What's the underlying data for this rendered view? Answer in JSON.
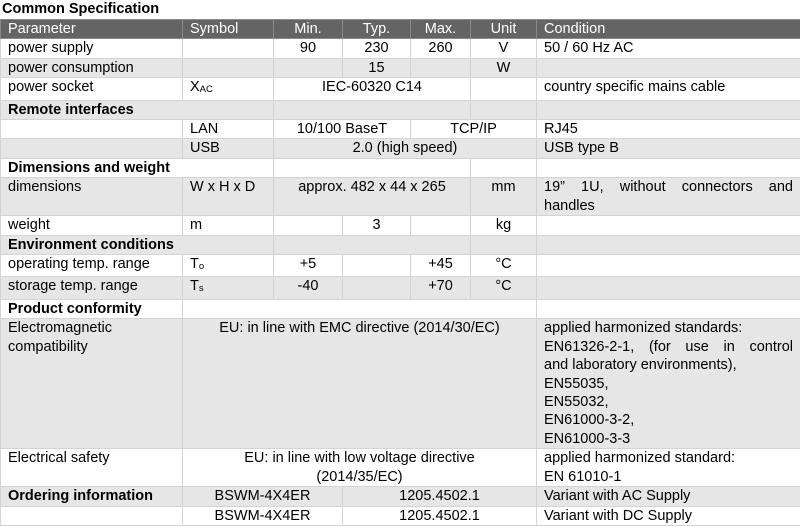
{
  "title": "Common Specification",
  "header": [
    "Parameter",
    "Symbol",
    "Min.",
    "Typ.",
    "Max.",
    "Unit",
    "Condition"
  ],
  "power_supply": {
    "param": "power supply",
    "min": "90",
    "typ": "230",
    "max": "260",
    "unit": "V",
    "condition": "50 / 60 Hz AC"
  },
  "power_consumption": {
    "param": "power consumption",
    "typ": "15",
    "unit": "W"
  },
  "power_socket": {
    "param": "power socket",
    "symbol": "X",
    "symbol_sub": "AC",
    "value": "IEC-60320 C14",
    "condition": "country specific mains cable"
  },
  "remote": {
    "section": "Remote interfaces",
    "lan": {
      "symbol": "LAN",
      "value1": "10/100 BaseT",
      "value2": "TCP/IP",
      "condition": "RJ45"
    },
    "usb": {
      "symbol": "USB",
      "value": "2.0 (high speed)",
      "condition": "USB type B"
    }
  },
  "dimensions": {
    "section": "Dimensions and weight",
    "dim": {
      "param": "dimensions",
      "symbol": "W x H x D",
      "value": "approx. 482 x 44 x 265",
      "unit": "mm",
      "condition_line1": "19” 1U, without connectors and",
      "condition_line2": "handles"
    },
    "weight": {
      "param": "weight",
      "symbol": "m",
      "typ": "3",
      "unit": "kg"
    }
  },
  "environment": {
    "section": "Environment conditions",
    "operating": {
      "param": "operating temp. range",
      "symbol": "T",
      "symbol_sub": "o",
      "min": "+5",
      "max": "+45",
      "unit": "°C"
    },
    "storage": {
      "param": "storage temp. range",
      "symbol": "T",
      "symbol_sub": "s",
      "min": "-40",
      "max": "+70",
      "unit": "°C"
    }
  },
  "conformity": {
    "section": "Product conformity",
    "emc": {
      "param_line1": "Electromagnetic",
      "param_line2": "compatibility",
      "value": "EU: in line with EMC directive (2014/30/EC)",
      "condition": [
        "applied harmonized standards:",
        "EN61326-2-1, (for use in control",
        "and laboratory environments),",
        "EN55035,",
        "EN55032,",
        "EN61000-3-2,",
        "EN61000-3-3"
      ]
    },
    "safety": {
      "param": "Electrical safety",
      "value_line1": "EU: in line with low voltage directive",
      "value_line2": "(2014/35/EC)",
      "condition_line1": "applied harmonized standard:",
      "condition_line2": "EN 61010-1"
    }
  },
  "ordering": {
    "section": "Ordering information",
    "items": [
      {
        "model": "BSWM-4X4ER",
        "number": "1205.4502.1",
        "variant": "Variant with AC Supply"
      },
      {
        "model": "BSWM-4X4ER",
        "number": "1205.4502.1",
        "variant": "Variant with DC Supply"
      }
    ]
  }
}
